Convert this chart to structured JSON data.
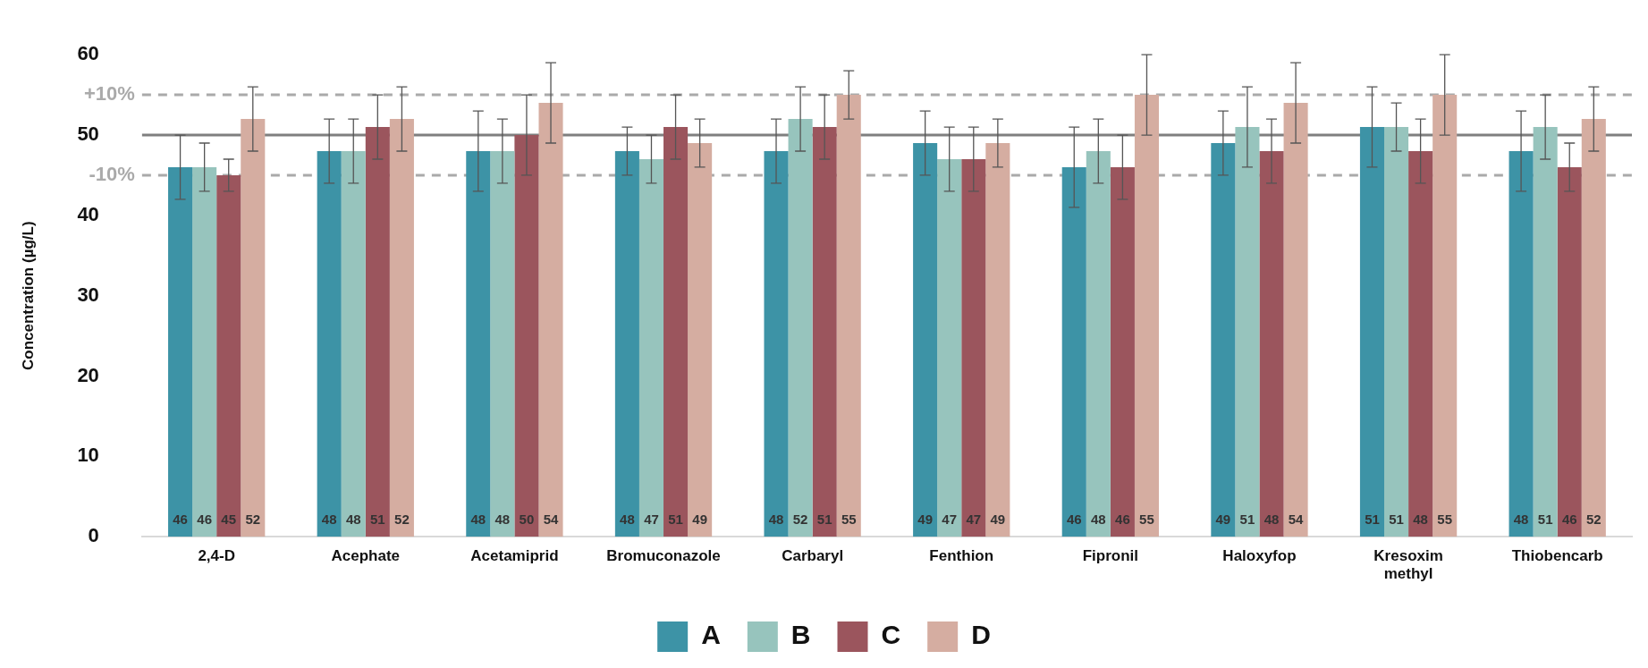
{
  "chart_data": {
    "type": "bar",
    "ylabel": "Concentration (µg/L)",
    "categories": [
      "2,4-D",
      "Acephate",
      "Acetamiprid",
      "Bromuconazole",
      "Carbaryl",
      "Fenthion",
      "Fipronil",
      "Haloxyfop",
      "Kresoxim methyl",
      "Thiobencarb"
    ],
    "series": [
      {
        "name": "A",
        "color": "#3d93a6",
        "values": [
          46,
          48,
          48,
          48,
          48,
          49,
          46,
          49,
          51,
          48
        ],
        "errors": [
          4,
          4,
          5,
          3,
          4,
          4,
          5,
          4,
          5,
          5
        ]
      },
      {
        "name": "B",
        "color": "#97c4bd",
        "values": [
          46,
          48,
          48,
          47,
          52,
          47,
          48,
          51,
          51,
          51
        ],
        "errors": [
          3,
          4,
          4,
          3,
          4,
          4,
          4,
          5,
          3,
          4
        ]
      },
      {
        "name": "C",
        "color": "#9b555d",
        "values": [
          45,
          51,
          50,
          51,
          51,
          47,
          46,
          48,
          48,
          46
        ],
        "errors": [
          2,
          4,
          5,
          4,
          4,
          4,
          4,
          4,
          4,
          3
        ]
      },
      {
        "name": "D",
        "color": "#d5ada1",
        "values": [
          52,
          52,
          54,
          49,
          55,
          49,
          55,
          54,
          55,
          52
        ],
        "errors": [
          4,
          4,
          5,
          3,
          3,
          3,
          5,
          5,
          5,
          4
        ]
      }
    ],
    "ylim": [
      0,
      60
    ],
    "yticks": [
      0,
      10,
      20,
      30,
      40,
      50,
      60
    ],
    "annotations": [
      "+10%",
      "-10%"
    ],
    "grid": false,
    "legend": "bottom",
    "data_labels": true,
    "ref_lines": [
      {
        "axis": "y",
        "value": 50,
        "label": null,
        "color": "#7f7f7f",
        "line_style": "solid"
      },
      {
        "axis": "y",
        "value": 55,
        "label": null,
        "color": "#aaaaaa",
        "line_style": "dashed"
      },
      {
        "axis": "y",
        "value": 45,
        "label": null,
        "color": "#aaaaaa",
        "line_style": "dashed"
      }
    ]
  }
}
